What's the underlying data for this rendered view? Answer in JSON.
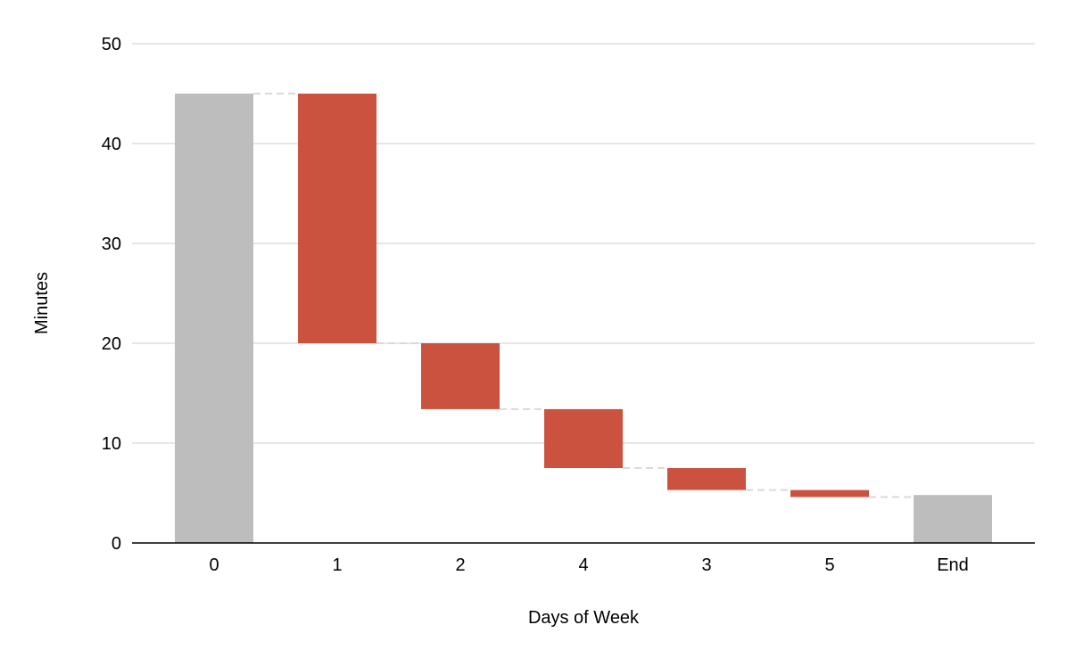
{
  "chart_data": {
    "type": "waterfall",
    "title": "",
    "xlabel": "Days of Week",
    "ylabel": "Minutes",
    "ylim": [
      0,
      50
    ],
    "yticks": [
      0,
      10,
      20,
      30,
      40,
      50
    ],
    "grid": true,
    "legend": "none",
    "categories": [
      "0",
      "1",
      "2",
      "4",
      "3",
      "5",
      "End"
    ],
    "bars": [
      {
        "category": "0",
        "kind": "total",
        "value": 45
      },
      {
        "category": "1",
        "kind": "decrease",
        "value": -25
      },
      {
        "category": "2",
        "kind": "decrease",
        "value": -6.6
      },
      {
        "category": "4",
        "kind": "decrease",
        "value": -5.9
      },
      {
        "category": "3",
        "kind": "decrease",
        "value": -2.2
      },
      {
        "category": "5",
        "kind": "decrease",
        "value": -0.7
      },
      {
        "category": "End",
        "kind": "total",
        "value": 4.8
      }
    ],
    "colors": {
      "total": "#bdbdbd",
      "decrease": "#cc5240",
      "gridline": "#cccccc",
      "connector": "#d9d9d9",
      "axis": "#000000"
    }
  }
}
